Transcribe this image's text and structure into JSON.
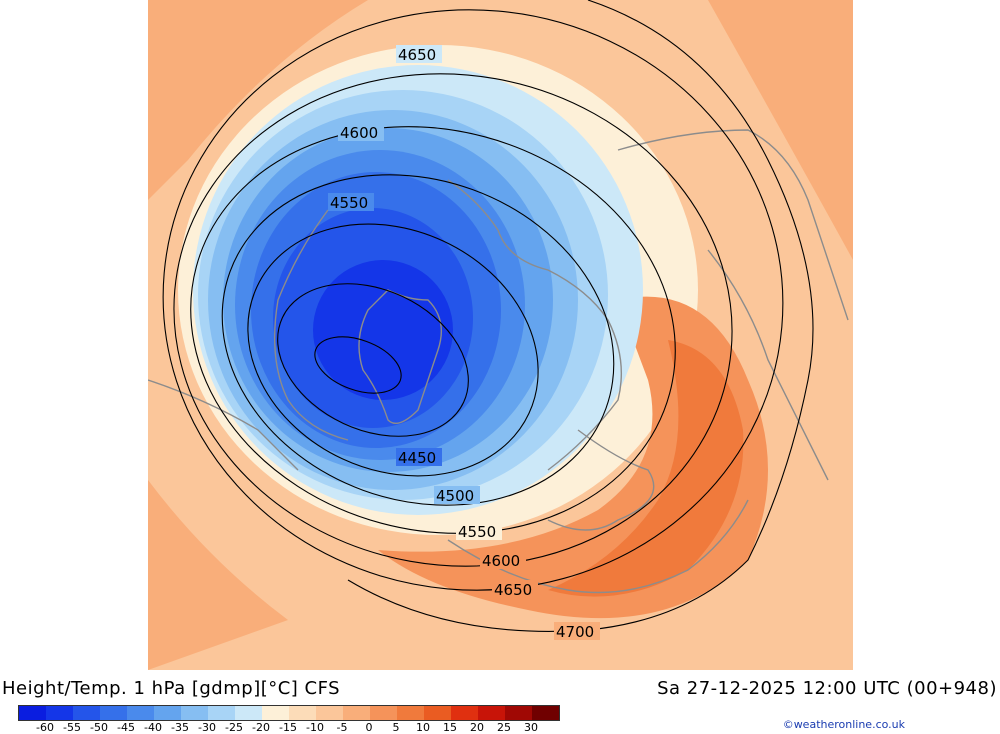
{
  "title": "Height/Temp. 1 hPa [gdmp][°C] CFS",
  "valid_time": "Sa 27-12-2025 12:00 UTC (00+948)",
  "credit": "©weatheronline.co.uk",
  "contour_labels": [
    {
      "id": "c4650a",
      "text": "4650"
    },
    {
      "id": "c4600a",
      "text": "4600"
    },
    {
      "id": "c4550a",
      "text": "4550"
    },
    {
      "id": "c4450",
      "text": "4450"
    },
    {
      "id": "c4500",
      "text": "4500"
    },
    {
      "id": "c4550b",
      "text": "4550"
    },
    {
      "id": "c4600b",
      "text": "4600"
    },
    {
      "id": "c4650b",
      "text": "4650"
    },
    {
      "id": "c4700",
      "text": "4700"
    }
  ],
  "legend": {
    "ticks": [
      "-60",
      "-55",
      "-50",
      "-45",
      "-40",
      "-35",
      "-30",
      "-25",
      "-20",
      "-15",
      "-10",
      "-5",
      "0",
      "5",
      "10",
      "15",
      "20",
      "25",
      "30"
    ],
    "colors": [
      "#0a1de0",
      "#1436e8",
      "#2455ea",
      "#3570ea",
      "#4a8aec",
      "#64a4ee",
      "#86bef2",
      "#a8d4f6",
      "#cce8f8",
      "#fdf0d8",
      "#fcdcb8",
      "#fbc69a",
      "#f9ae7a",
      "#f5935a",
      "#f07a3c",
      "#ea5c22",
      "#e03010",
      "#c81408",
      "#a00804",
      "#700000"
    ]
  }
}
